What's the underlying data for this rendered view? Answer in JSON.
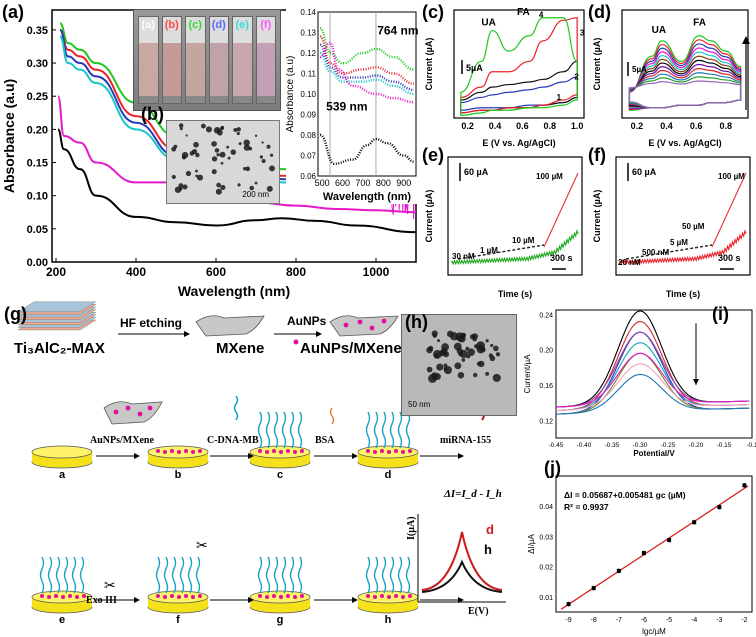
{
  "panel_labels": {
    "a": "(a)",
    "b": "(b)",
    "c": "(c)",
    "d": "(d)",
    "e": "(e)",
    "f": "(f)",
    "g": "(g)",
    "h": "(h)",
    "i": "(i)",
    "j": "(j)"
  },
  "colors": {
    "black": "#000000",
    "red": "#e8232a",
    "green": "#1ec81e",
    "blue": "#2a3ab8",
    "cyan": "#17c6c6",
    "magenta": "#e617c9",
    "darkred": "#cc1a1a"
  },
  "chart_data": [
    {
      "id": "a-main",
      "type": "line",
      "xlabel": "Wavelength (nm)",
      "ylabel": "Absorbance (a.u)",
      "xlim": [
        190,
        1100
      ],
      "ylim": [
        0,
        0.38
      ],
      "xticks": [
        200,
        400,
        600,
        800,
        1000
      ],
      "yticks": [
        0.0,
        0.05,
        0.1,
        0.15,
        0.2,
        0.25,
        0.3,
        0.35
      ],
      "series": [
        {
          "name": "green",
          "color": "#1ec81e",
          "x": [
            210,
            230,
            260,
            300,
            400,
            500,
            560,
            650,
            764,
            900,
            1000,
            1100
          ],
          "y": [
            0.36,
            0.33,
            0.32,
            0.3,
            0.24,
            0.19,
            0.17,
            0.15,
            0.14,
            0.13,
            0.12,
            0.12
          ]
        },
        {
          "name": "red",
          "color": "#e8232a",
          "x": [
            210,
            230,
            260,
            300,
            400,
            500,
            560,
            650,
            764,
            900,
            1000,
            1100
          ],
          "y": [
            0.35,
            0.32,
            0.31,
            0.29,
            0.22,
            0.17,
            0.155,
            0.14,
            0.13,
            0.12,
            0.115,
            0.11
          ]
        },
        {
          "name": "blue",
          "color": "#2a3ab8",
          "x": [
            210,
            230,
            260,
            300,
            400,
            500,
            560,
            650,
            764,
            900,
            1000,
            1100
          ],
          "y": [
            0.35,
            0.31,
            0.3,
            0.28,
            0.21,
            0.16,
            0.15,
            0.13,
            0.125,
            0.11,
            0.105,
            0.1
          ]
        },
        {
          "name": "cyan",
          "color": "#17c6c6",
          "x": [
            210,
            230,
            260,
            300,
            400,
            500,
            560,
            650,
            764,
            900,
            1000,
            1100
          ],
          "y": [
            0.34,
            0.3,
            0.29,
            0.27,
            0.2,
            0.155,
            0.14,
            0.125,
            0.12,
            0.105,
            0.1,
            0.095
          ]
        },
        {
          "name": "magenta",
          "color": "#e617c9",
          "x": [
            205,
            220,
            260,
            300,
            400,
            480,
            539,
            600,
            700,
            800,
            900,
            1000,
            1100
          ],
          "y": [
            0.25,
            0.19,
            0.18,
            0.15,
            0.12,
            0.12,
            0.132,
            0.11,
            0.09,
            0.085,
            0.08,
            0.078,
            0.075
          ]
        },
        {
          "name": "black",
          "color": "#000000",
          "x": [
            205,
            220,
            260,
            300,
            400,
            500,
            600,
            700,
            764,
            850,
            950,
            1100
          ],
          "y": [
            0.2,
            0.17,
            0.14,
            0.1,
            0.068,
            0.06,
            0.055,
            0.063,
            0.066,
            0.062,
            0.055,
            0.045
          ]
        }
      ]
    },
    {
      "id": "a-inset",
      "type": "line",
      "xlabel": "Wavelength (nm)",
      "ylabel": "Absorbance (a.u)",
      "xlim": [
        480,
        960
      ],
      "ylim": [
        0.06,
        0.14
      ],
      "xticks": [
        500,
        600,
        700,
        800,
        900
      ],
      "yticks": [
        0.06,
        0.07,
        0.08,
        0.09,
        0.1,
        0.11,
        0.12,
        0.13,
        0.14
      ],
      "annotations": [
        "764 nm",
        "539 nm"
      ],
      "series": [
        {
          "name": "green",
          "color": "#1ec81e",
          "x": [
            490,
            540,
            600,
            700,
            764,
            850,
            950
          ],
          "y": [
            0.132,
            0.12,
            0.115,
            0.12,
            0.122,
            0.118,
            0.112
          ]
        },
        {
          "name": "red",
          "color": "#e8232a",
          "x": [
            490,
            540,
            600,
            700,
            764,
            850,
            950
          ],
          "y": [
            0.128,
            0.115,
            0.11,
            0.112,
            0.113,
            0.11,
            0.105
          ]
        },
        {
          "name": "blue",
          "color": "#2a3ab8",
          "x": [
            490,
            540,
            600,
            700,
            764,
            850,
            950
          ],
          "y": [
            0.124,
            0.113,
            0.108,
            0.108,
            0.109,
            0.106,
            0.102
          ]
        },
        {
          "name": "cyan",
          "color": "#17c6c6",
          "x": [
            490,
            540,
            600,
            700,
            764,
            850,
            950
          ],
          "y": [
            0.12,
            0.111,
            0.106,
            0.106,
            0.107,
            0.104,
            0.1
          ]
        },
        {
          "name": "magenta",
          "color": "#e617c9",
          "x": [
            490,
            539,
            580,
            650,
            764,
            850,
            950
          ],
          "y": [
            0.118,
            0.125,
            0.112,
            0.104,
            0.1,
            0.098,
            0.096
          ]
        },
        {
          "name": "black",
          "color": "#000000",
          "x": [
            490,
            560,
            650,
            720,
            764,
            820,
            900,
            950
          ],
          "y": [
            0.08,
            0.066,
            0.068,
            0.075,
            0.078,
            0.076,
            0.07,
            0.067
          ]
        }
      ]
    },
    {
      "id": "c",
      "type": "line",
      "xlabel": "E (V vs. Ag/AgCl)",
      "ylabel": "Current (µA)",
      "xlim": [
        0.1,
        1.05
      ],
      "ylim": [
        -12,
        30
      ],
      "xticks": [
        0.2,
        0.4,
        0.6,
        0.8,
        1.0
      ],
      "annotations": [
        "UA",
        "FA",
        "1",
        "2",
        "3",
        "4"
      ],
      "scalebar": "5µA"
    },
    {
      "id": "d",
      "type": "line",
      "xlabel": "E (V vs. Ag/AgCl)",
      "ylabel": "Current (µA)",
      "xlim": [
        0.1,
        0.95
      ],
      "ylim": [
        -12,
        30
      ],
      "xticks": [
        0.2,
        0.4,
        0.6,
        0.8
      ],
      "annotations": [
        "UA",
        "FA"
      ],
      "scalebar": "5µA"
    },
    {
      "id": "e",
      "type": "line",
      "xlabel": "Time (s)",
      "ylabel": "Current (µA)",
      "annotations": [
        "30 nM",
        "1 µM",
        "10 µM",
        "100 µM"
      ],
      "scalebar_y": "60 µA",
      "scalebar_x": "300 s"
    },
    {
      "id": "f",
      "type": "line",
      "xlabel": "Time (s)",
      "ylabel": "Current (µA)",
      "annotations": [
        "20 nM",
        "500 nM",
        "5 µM",
        "50 µM",
        "100 µM"
      ],
      "scalebar_y": "60 µA",
      "scalebar_x": "300 s"
    },
    {
      "id": "i",
      "type": "line",
      "xlabel": "Potential/V",
      "ylabel": "Current/µA",
      "xlim": [
        -0.45,
        -0.1
      ],
      "ylim": [
        0.1,
        0.245
      ],
      "xticks": [
        -0.45,
        -0.4,
        -0.35,
        -0.3,
        -0.25,
        -0.2,
        -0.15,
        -0.1
      ],
      "xticklabels": [
        "-0.45",
        "-0.40",
        "-0.35",
        "-0.30",
        "-0.25",
        "-0.20",
        "-0.15",
        "-0.1"
      ],
      "yticks": [
        0.12,
        0.16,
        0.2,
        0.24
      ],
      "yticklabels": [
        "0.12",
        "0.16",
        "0.20",
        "0.24"
      ],
      "peak_heights": [
        0.236,
        0.228,
        0.22,
        0.212,
        0.204,
        0.196,
        0.188,
        0.18,
        0.172
      ],
      "peak_colors": [
        "#000000",
        "#d62728",
        "#2a3ab8",
        "#8e44ad",
        "#17a2b8",
        "#6b8e23",
        "#e617c9",
        "#f5a0c0",
        "#1f77b4"
      ]
    },
    {
      "id": "j",
      "type": "scatter",
      "xlabel": "lgc/µM",
      "ylabel": "ΔI/µA",
      "xlim": [
        -9.5,
        -1.7
      ],
      "ylim": [
        0.005,
        0.05
      ],
      "xticks": [
        -9,
        -8,
        -7,
        -6,
        -5,
        -4,
        -3,
        -2
      ],
      "yticks": [
        0.01,
        0.02,
        0.03,
        0.04
      ],
      "x": [
        -9,
        -8,
        -7,
        -6,
        -5,
        -4,
        -3,
        -2
      ],
      "y": [
        0.0076,
        0.0129,
        0.0186,
        0.0245,
        0.0288,
        0.0347,
        0.0397,
        0.0469
      ],
      "fit": {
        "slope": 0.005481,
        "intercept": 0.05687
      },
      "equation": "ΔI = 0.05687+0.005481 gc (µM)",
      "r2": "R² = 0.9937"
    }
  ],
  "inset_a": {
    "vial_labels": [
      "(a)",
      "(b)",
      "(c)",
      "(d)",
      "(e)",
      "(f)"
    ],
    "vial_label_colors": [
      "#ffffff",
      "#ff4b4b",
      "#38d838",
      "#5a6aff",
      "#38dede",
      "#ff5bff"
    ]
  },
  "inset_b": {
    "scale": "200 nm"
  },
  "panel_h": {
    "scale": "50 nm"
  },
  "scheme_g": {
    "max_label": "Ti₃AlC₂-MAX",
    "step1": "HF etching",
    "mxene_label": "MXene",
    "step2": "AuNPs",
    "product_label": "AuNPs/MXene",
    "electrodes": [
      "a",
      "b",
      "c",
      "d",
      "e",
      "f",
      "g",
      "h"
    ],
    "reagents": [
      "AuNPs/MXene",
      "C-DNA-MB",
      "BSA",
      "miRNA-155"
    ],
    "exo": "Exo III",
    "delta_eq": "ΔI=I_d - I_h",
    "dpv_y": "I(µA)",
    "dpv_x": "E(V)",
    "curve_d": "d",
    "curve_h": "h"
  }
}
